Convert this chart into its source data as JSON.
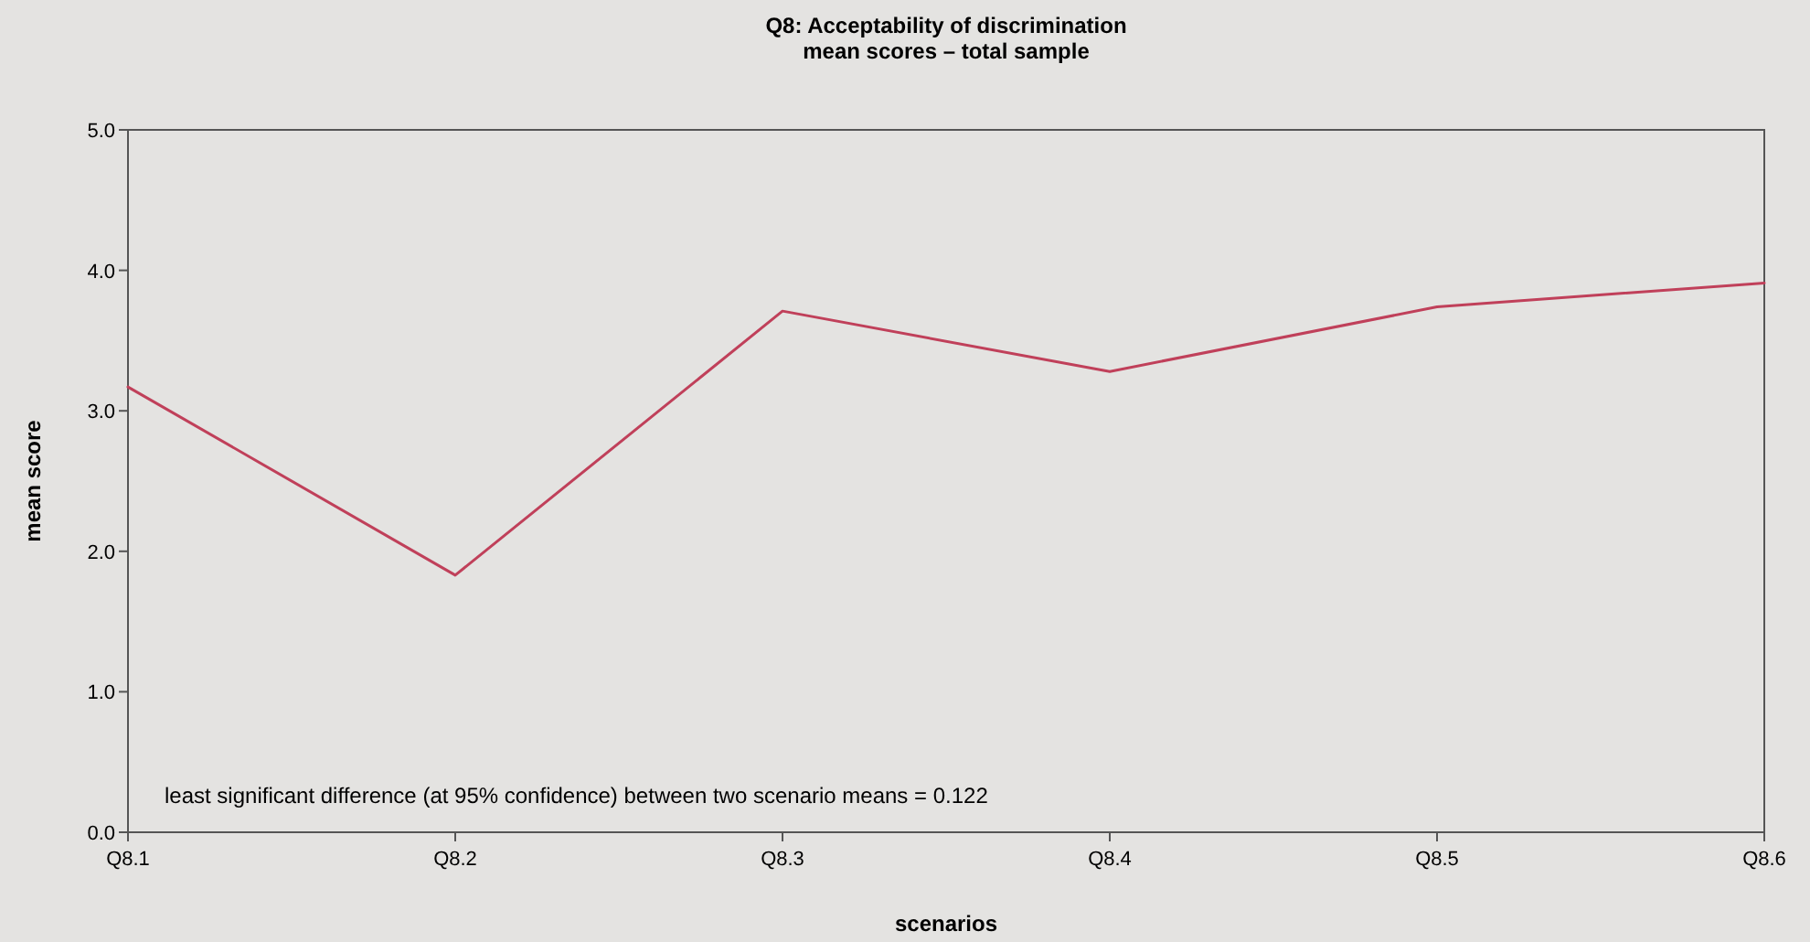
{
  "chart_data": {
    "type": "line",
    "title": "Q8: Acceptability of discrimination\nmean scores – total sample",
    "xlabel": "scenarios",
    "ylabel": "mean score",
    "categories": [
      "Q8.1",
      "Q8.2",
      "Q8.3",
      "Q8.4",
      "Q8.5",
      "Q8.6"
    ],
    "series": [
      {
        "color": "#c0405a",
        "values": [
          3.17,
          1.83,
          3.71,
          3.28,
          3.74,
          3.91
        ]
      }
    ],
    "ylim": [
      0,
      5
    ],
    "yticks": [
      {
        "value": 0,
        "label": "0.0"
      },
      {
        "value": 1,
        "label": "1.0"
      },
      {
        "value": 2,
        "label": "2.0"
      },
      {
        "value": 3,
        "label": "3.0"
      },
      {
        "value": 4,
        "label": "4.0"
      },
      {
        "value": 5,
        "label": "5.0"
      }
    ],
    "grid": false,
    "marker": "none",
    "line_style": "solid",
    "annotations": [
      "least significant difference (at 95% confidence) between two scenario means = 0.122"
    ]
  }
}
